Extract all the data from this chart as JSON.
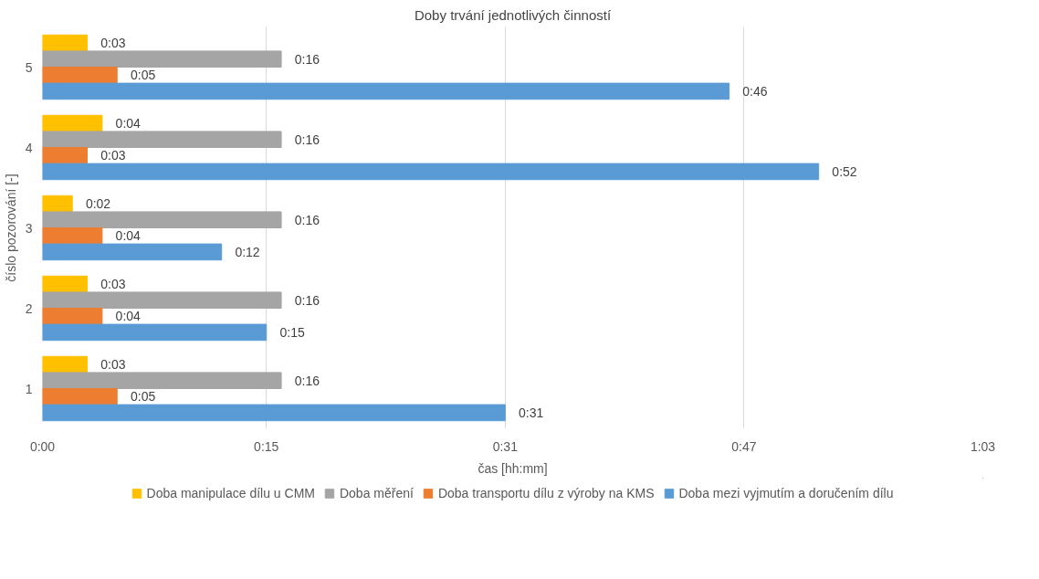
{
  "chart_data": {
    "type": "bar",
    "orientation": "horizontal",
    "title": "Doby trvání jednotlivých činností",
    "xlabel": "čas [hh:mm]",
    "ylabel": "číslo pozorování [-]",
    "categories": [
      "5",
      "4",
      "3",
      "2",
      "1"
    ],
    "series": [
      {
        "name": "Doba manipulace dílu u CMM",
        "color": "#ffc000",
        "values": [
          3,
          4,
          2,
          3,
          3
        ],
        "value_labels": [
          "0:03",
          "0:04",
          "0:02",
          "0:03",
          "0:03"
        ]
      },
      {
        "name": "Doba měření",
        "color": "#a5a5a5",
        "values": [
          16,
          16,
          16,
          16,
          16
        ],
        "value_labels": [
          "0:16",
          "0:16",
          "0:16",
          "0:16",
          "0:16"
        ]
      },
      {
        "name": "Doba transportu dílu z výroby na KMS",
        "color": "#ed7d31",
        "values": [
          5,
          3,
          4,
          4,
          5
        ],
        "value_labels": [
          "0:05",
          "0:03",
          "0:04",
          "0:04",
          "0:05"
        ]
      },
      {
        "name": "Doba mezi vyjmutím a doručením dílu",
        "color": "#5b9bd5",
        "values": [
          46,
          52,
          12,
          15,
          31
        ],
        "value_labels": [
          "0:46",
          "0:52",
          "0:12",
          "0:15",
          "0:31"
        ]
      }
    ],
    "xlim": [
      0,
      63
    ],
    "xticks": [
      {
        "value": 0,
        "label": "0:00"
      },
      {
        "value": 15,
        "label": "0:15"
      },
      {
        "value": 31,
        "label": "0:31"
      },
      {
        "value": 47,
        "label": "0:47"
      },
      {
        "value": 63,
        "label": "1:03"
      }
    ],
    "grid": "x",
    "legend": "bottom"
  }
}
